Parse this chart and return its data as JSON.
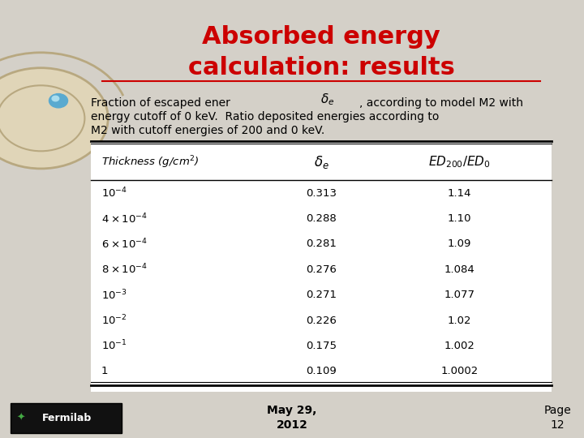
{
  "title_line1": "Absorbed energy",
  "title_line2": "calculation: results",
  "title_color": "#cc0000",
  "bg_color": "#d4d0c8",
  "body_text1": "Fraction of escaped ener",
  "body_text2": ", according to model M2 with",
  "body_text3": "energy cutoff of 0 keV.  Ratio deposited energies according to",
  "body_text4": "M2 with cutoff energies of 200 and 0 keV.",
  "table_rows": [
    [
      "$10^{-4}$",
      "0.313",
      "1.14"
    ],
    [
      "$4 \\times 10^{-4}$",
      "0.288",
      "1.10"
    ],
    [
      "$6 \\times 10^{-4}$",
      "0.281",
      "1.09"
    ],
    [
      "$8 \\times 10^{-4}$",
      "0.276",
      "1.084"
    ],
    [
      "$10^{-3}$",
      "0.271",
      "1.077"
    ],
    [
      "$10^{-2}$",
      "0.226",
      "1.02"
    ],
    [
      "$10^{-1}$",
      "0.175",
      "1.002"
    ],
    [
      "1",
      "0.109",
      "1.0002"
    ]
  ],
  "footer_date": "May 29,\n2012",
  "footer_page": "Page\n12"
}
